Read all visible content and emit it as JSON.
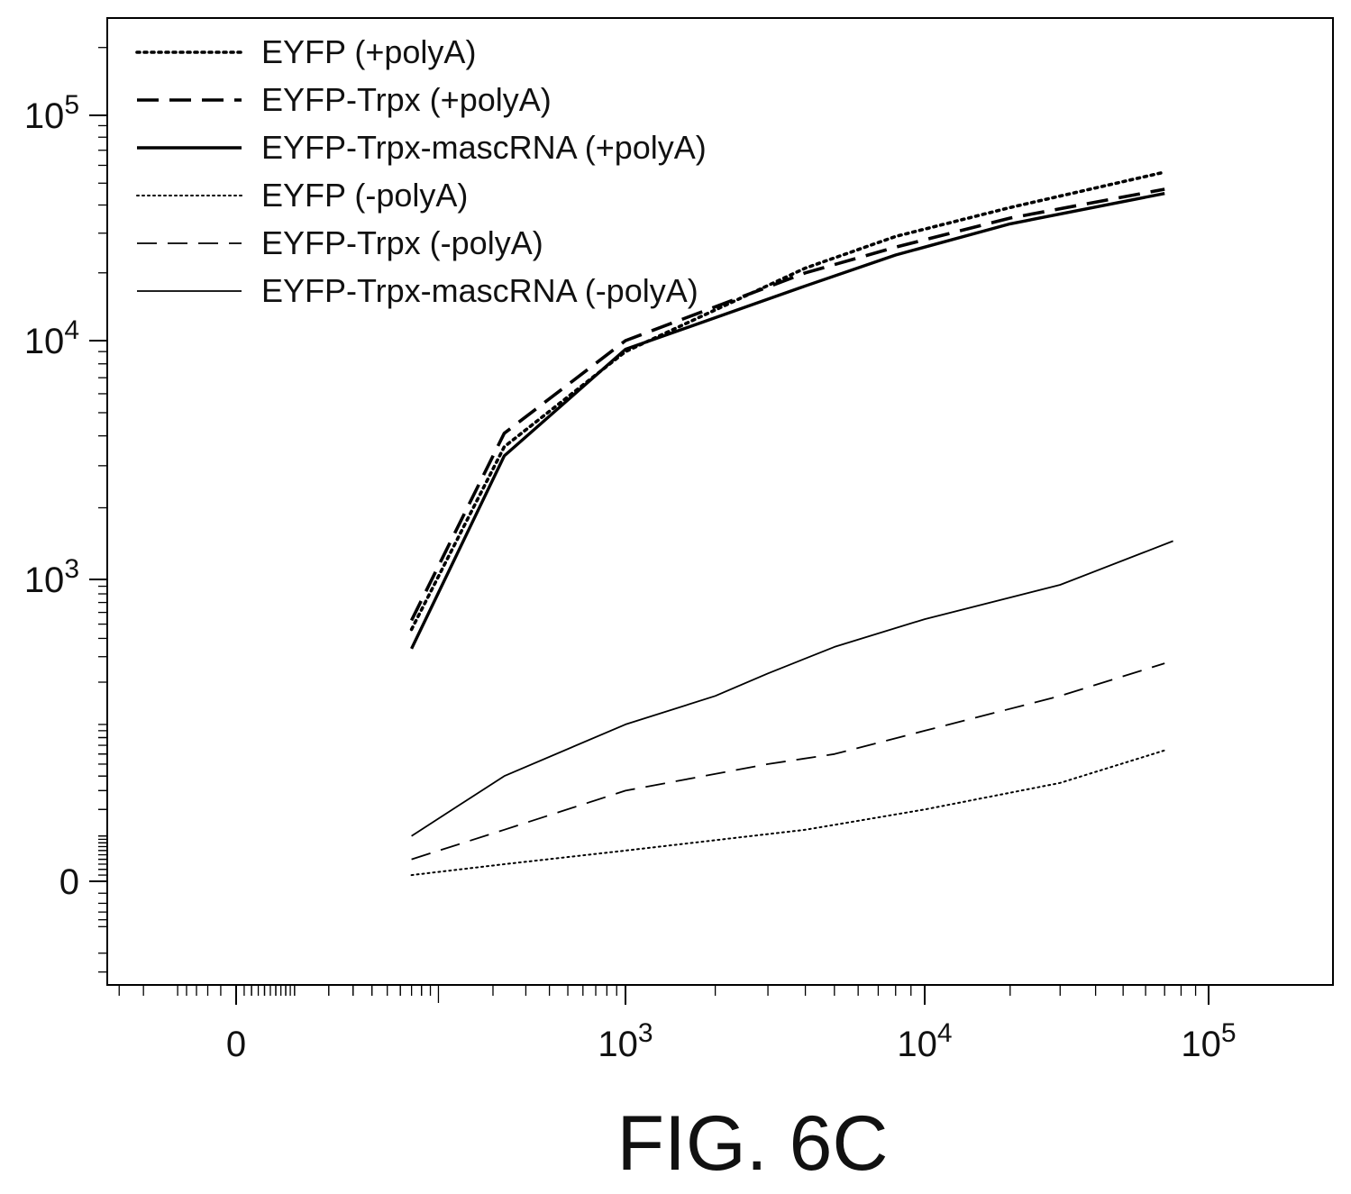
{
  "figure_label": "FIG. 6C",
  "chart_data": {
    "type": "line",
    "title": "",
    "xlabel": "",
    "ylabel": "",
    "x_scale": "biexponential",
    "y_scale": "biexponential",
    "xlim": [
      -120,
      200000
    ],
    "ylim": [
      -120,
      250000
    ],
    "grid": false,
    "legend_position": "top-left",
    "x_ticks": [
      {
        "value": 0,
        "label": "0"
      },
      {
        "value": 1000,
        "label": "10",
        "exp": "3"
      },
      {
        "value": 10000,
        "label": "10",
        "exp": "4"
      },
      {
        "value": 100000,
        "label": "10",
        "exp": "5"
      }
    ],
    "y_ticks": [
      {
        "value": 0,
        "label": "0"
      },
      {
        "value": 1000,
        "label": "10",
        "exp": "3"
      },
      {
        "value": 10000,
        "label": "10",
        "exp": "4"
      },
      {
        "value": 100000,
        "label": "10",
        "exp": "5"
      }
    ],
    "series": [
      {
        "name": "EYFP (+polyA)",
        "style": "dotted-thick",
        "points": [
          [
            70,
            460
          ],
          [
            230,
            3600
          ],
          [
            1000,
            9000
          ],
          [
            4000,
            21000
          ],
          [
            8000,
            29000
          ],
          [
            20000,
            39000
          ],
          [
            70000,
            56000
          ]
        ]
      },
      {
        "name": "EYFP-Trpx (+polyA)",
        "style": "dashed-thick",
        "points": [
          [
            70,
            530
          ],
          [
            230,
            4100
          ],
          [
            1000,
            10000
          ],
          [
            4000,
            20000
          ],
          [
            8000,
            26000
          ],
          [
            20000,
            35000
          ],
          [
            70000,
            47000
          ]
        ]
      },
      {
        "name": "EYFP-Trpx-mascRNA (+polyA)",
        "style": "solid-thick",
        "points": [
          [
            70,
            340
          ],
          [
            230,
            3300
          ],
          [
            1000,
            9200
          ],
          [
            4000,
            17500
          ],
          [
            8000,
            24000
          ],
          [
            20000,
            33000
          ],
          [
            70000,
            45000
          ]
        ]
      },
      {
        "name": "EYFP (-polyA)",
        "style": "dotted-thin",
        "points": [
          [
            70,
            1
          ],
          [
            230,
            3
          ],
          [
            1000,
            6
          ],
          [
            4000,
            12
          ],
          [
            10000,
            20
          ],
          [
            30000,
            35
          ],
          [
            70000,
            64
          ]
        ]
      },
      {
        "name": "EYFP-Trpx (-polyA)",
        "style": "dashed-thin",
        "points": [
          [
            70,
            4
          ],
          [
            230,
            12
          ],
          [
            1000,
            30
          ],
          [
            3000,
            50
          ],
          [
            5000,
            60
          ],
          [
            10000,
            90
          ],
          [
            30000,
            160
          ],
          [
            70000,
            270
          ]
        ]
      },
      {
        "name": "EYFP-Trpx-mascRNA (-polyA)",
        "style": "solid-thin",
        "points": [
          [
            70,
            10
          ],
          [
            230,
            40
          ],
          [
            1000,
            100
          ],
          [
            2000,
            160
          ],
          [
            3000,
            230
          ],
          [
            5000,
            350
          ],
          [
            10000,
            540
          ],
          [
            30000,
            920
          ],
          [
            75000,
            1450
          ]
        ]
      }
    ]
  }
}
